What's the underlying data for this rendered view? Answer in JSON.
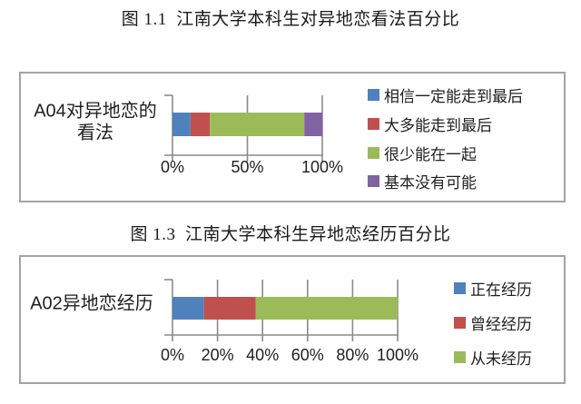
{
  "figure_titles": [
    "图 1.1  江南大学本科生对异地恋看法百分比",
    "图 1.3  江南大学本科生异地恋经历百分比"
  ],
  "colors": {
    "series_blue": "#4F81BD",
    "series_red": "#C0504D",
    "series_green": "#9BBB59",
    "series_purple": "#8064A2",
    "axis_gray": "#8a8a8a",
    "panel_border": "#a3a3a3",
    "text": "#1f1f1f"
  },
  "chart_data": [
    {
      "type": "bar",
      "stacked": true,
      "orientation": "horizontal",
      "title": "图 1.1  江南大学本科生对异地恋看法百分比",
      "category": "A04对异地恋的看法",
      "category_lines": [
        "A04对异地恋的",
        "看法"
      ],
      "series": [
        {
          "name": "相信一定能走到最后",
          "value": 12,
          "color": "#4F81BD"
        },
        {
          "name": "大多能走到最后",
          "value": 13,
          "color": "#C0504D"
        },
        {
          "name": "很少能在一起",
          "value": 63,
          "color": "#9BBB59"
        },
        {
          "name": "基本没有可能",
          "value": 12,
          "color": "#8064A2"
        }
      ],
      "xlim": [
        0,
        100
      ],
      "x_ticks": [
        {
          "label": "0%",
          "value": 0
        },
        {
          "label": "50%",
          "value": 50
        },
        {
          "label": "100%",
          "value": 100
        }
      ],
      "grid": true,
      "legend_position": "right"
    },
    {
      "type": "bar",
      "stacked": true,
      "orientation": "horizontal",
      "title": "图 1.3  江南大学本科生异地恋经历百分比",
      "category": "A02异地恋经历",
      "category_lines": [
        "A02异地恋经历"
      ],
      "series": [
        {
          "name": "正在经历",
          "value": 14,
          "color": "#4F81BD"
        },
        {
          "name": "曾经经历",
          "value": 23,
          "color": "#C0504D"
        },
        {
          "name": "从未经历",
          "value": 63,
          "color": "#9BBB59"
        }
      ],
      "xlim": [
        0,
        100
      ],
      "x_ticks": [
        {
          "label": "0%",
          "value": 0
        },
        {
          "label": "20%",
          "value": 20
        },
        {
          "label": "40%",
          "value": 40
        },
        {
          "label": "60%",
          "value": 60
        },
        {
          "label": "80%",
          "value": 80
        },
        {
          "label": "100%",
          "value": 100
        }
      ],
      "grid": true,
      "legend_position": "right"
    }
  ]
}
